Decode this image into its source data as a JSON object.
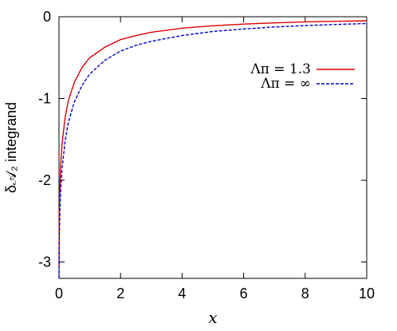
{
  "chart_data": {
    "type": "line",
    "xlabel": "x",
    "ylabel": "δ𝒜₂ integrand",
    "xlim": [
      0,
      10
    ],
    "ylim": [
      -3.2,
      0
    ],
    "x_ticks": [
      0,
      2,
      4,
      6,
      8,
      10
    ],
    "y_ticks": [
      0,
      -1,
      -2,
      -3
    ],
    "grid": false,
    "legend_position": "top-right",
    "series": [
      {
        "name": "Λπ = 1.3",
        "color": "#dd0000",
        "dash": "solid",
        "x": [
          0.0,
          0.01,
          0.02,
          0.05,
          0.1,
          0.2,
          0.3,
          0.5,
          0.75,
          1.0,
          1.5,
          2.0,
          2.5,
          3.0,
          4.0,
          5.0,
          6.0,
          7.0,
          8.0,
          9.0,
          10.0
        ],
        "y": [
          -3.05,
          -2.4,
          -2.2,
          -1.85,
          -1.55,
          -1.23,
          -1.03,
          -0.8,
          -0.62,
          -0.5,
          -0.37,
          -0.28,
          -0.23,
          -0.19,
          -0.14,
          -0.11,
          -0.09,
          -0.075,
          -0.063,
          -0.055,
          -0.05
        ]
      },
      {
        "name": "Λπ = ∞",
        "color": "#0000cc",
        "dash": "dashed",
        "x": [
          0.0,
          0.01,
          0.02,
          0.05,
          0.1,
          0.2,
          0.3,
          0.5,
          0.75,
          1.0,
          1.5,
          2.0,
          2.5,
          3.0,
          4.0,
          5.0,
          6.0,
          7.0,
          8.0,
          9.0,
          10.0
        ],
        "y": [
          -3.2,
          -2.7,
          -2.5,
          -2.15,
          -1.85,
          -1.52,
          -1.3,
          -1.04,
          -0.84,
          -0.7,
          -0.53,
          -0.42,
          -0.35,
          -0.3,
          -0.23,
          -0.18,
          -0.15,
          -0.125,
          -0.108,
          -0.094,
          -0.083
        ]
      }
    ]
  }
}
